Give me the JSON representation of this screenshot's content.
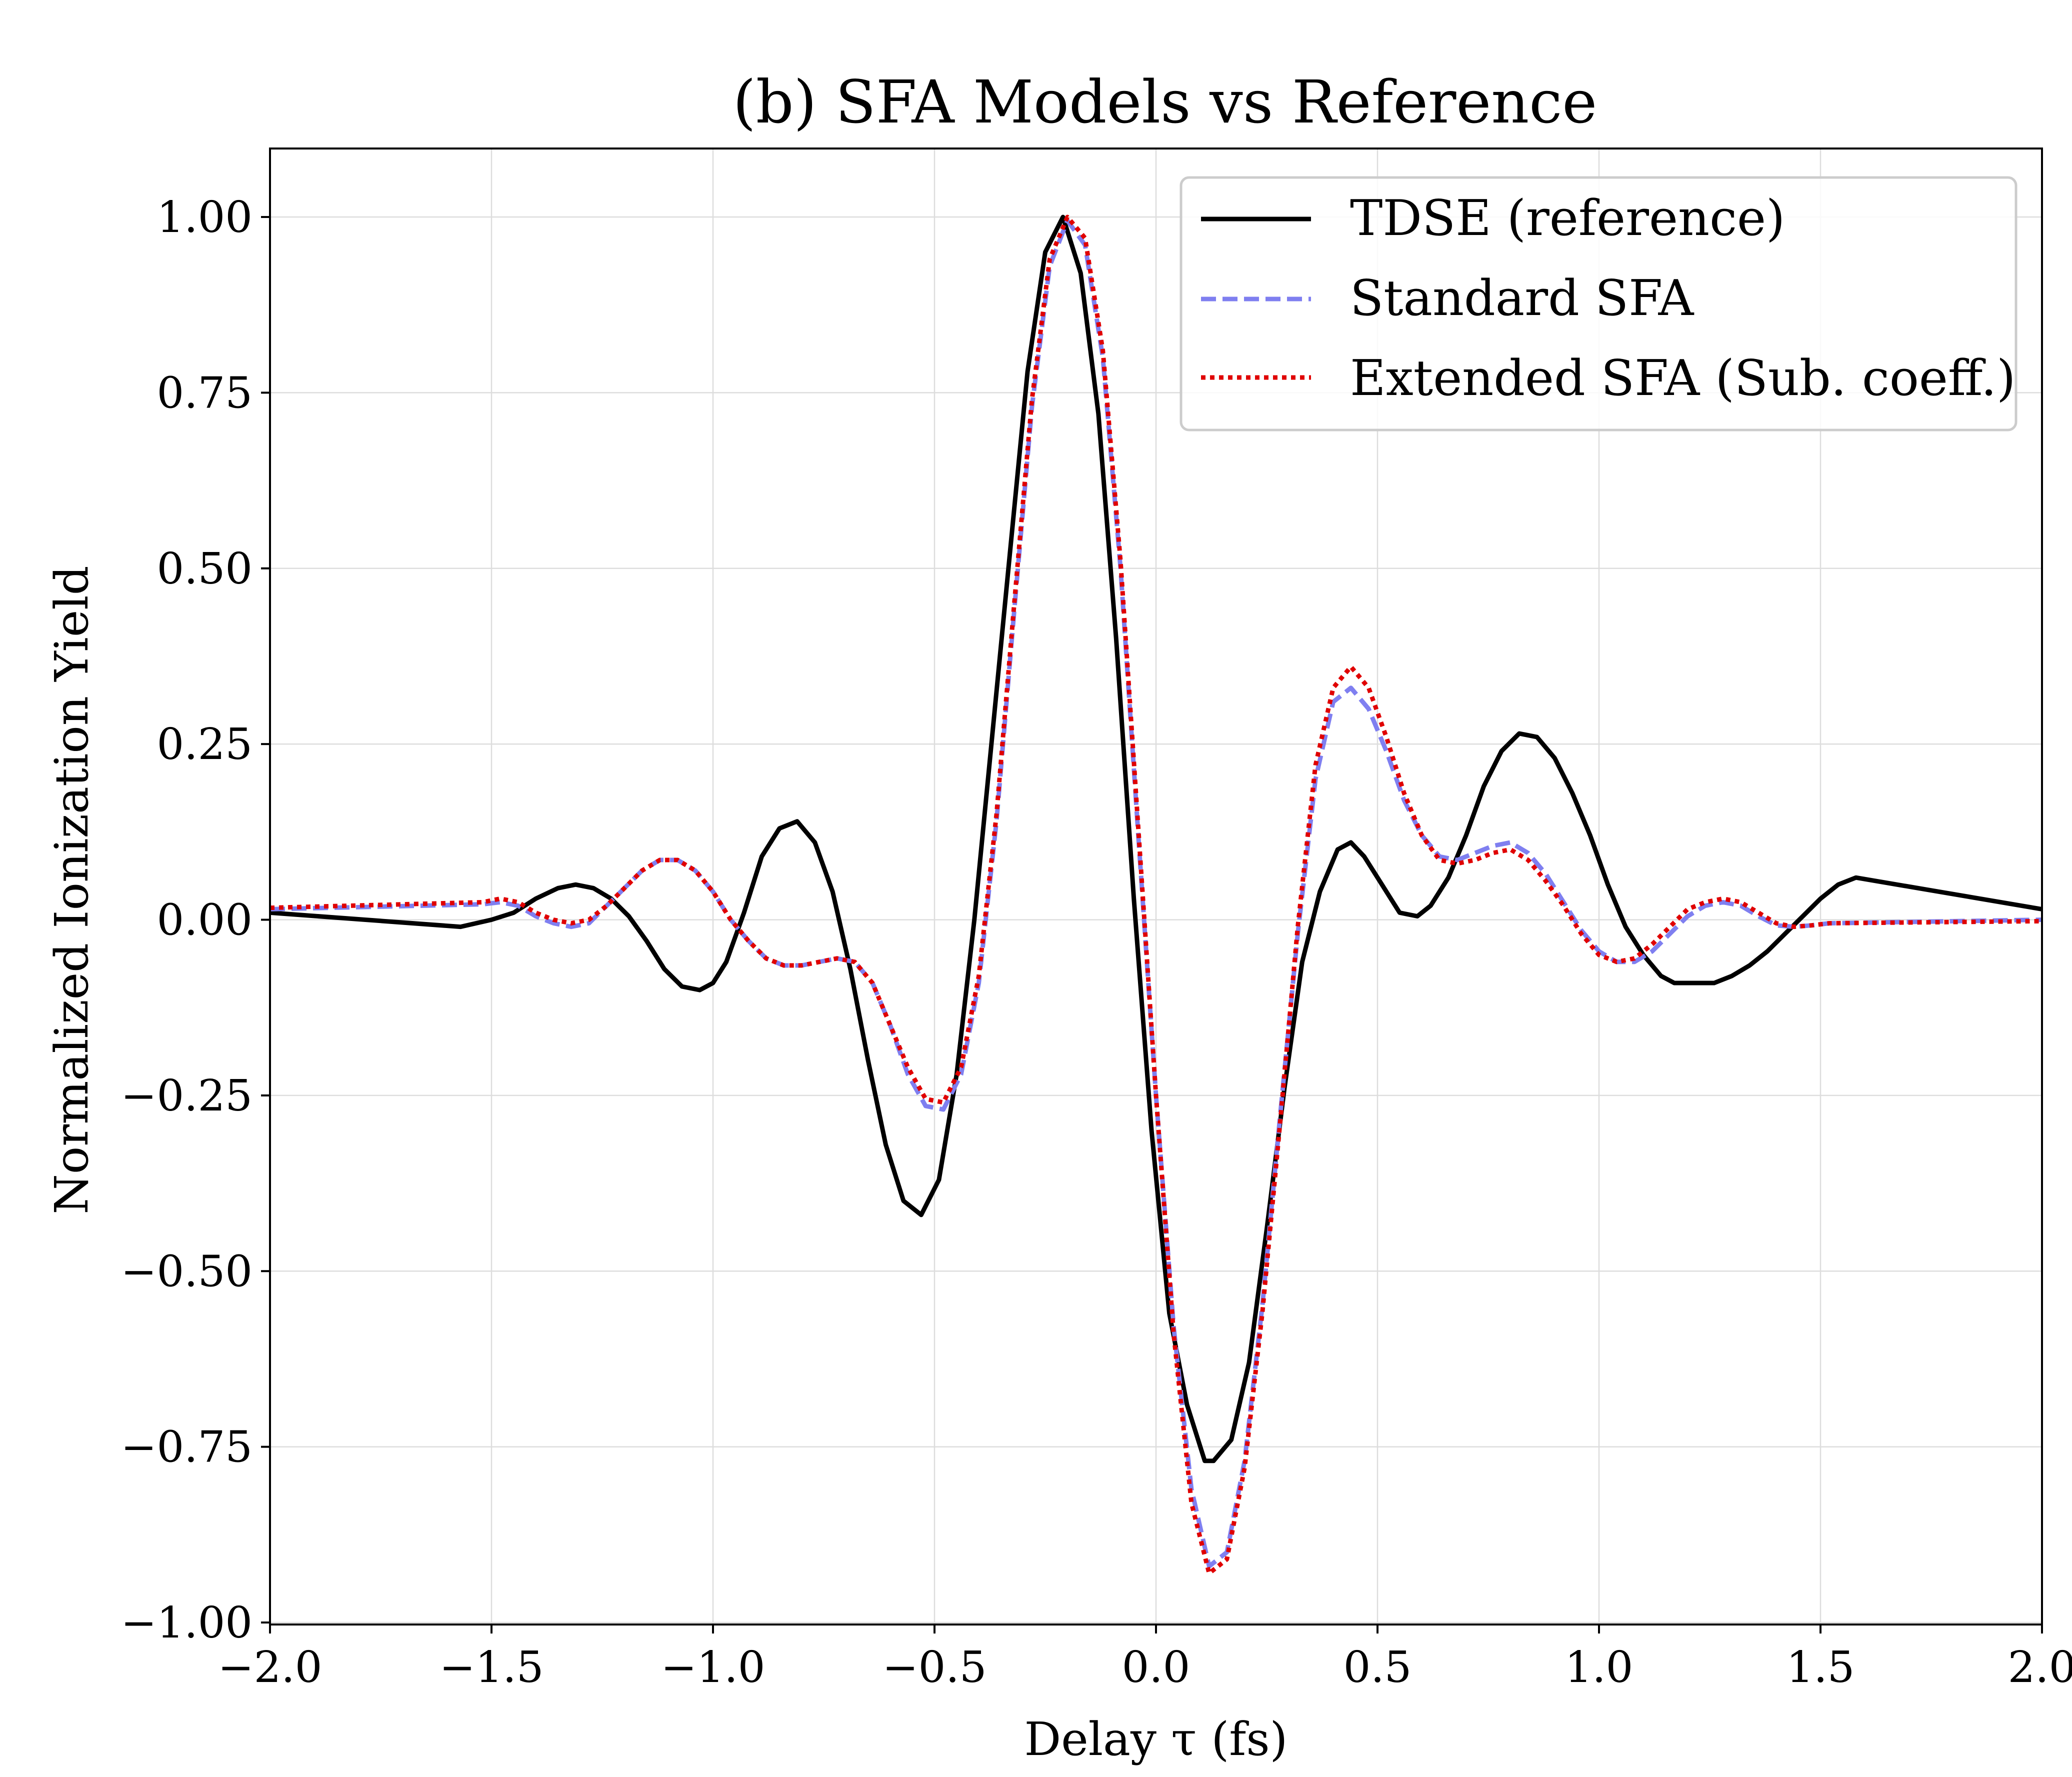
{
  "chart_data": {
    "type": "line",
    "title": "(b) SFA Models vs Reference",
    "xlabel": "Delay τ (fs)",
    "ylabel": "Normalized Ionization Yield",
    "xlim": [
      -2.0,
      2.0
    ],
    "ylim": [
      -1.0,
      1.1
    ],
    "grid": true,
    "legend_position": "top-right",
    "x_ticks": [
      -2.0,
      -1.5,
      -1.0,
      -0.5,
      0.0,
      0.5,
      1.0,
      1.5,
      2.0
    ],
    "x_tick_labels": [
      "−2.0",
      "−1.5",
      "−1.0",
      "−0.5",
      "0.0",
      "0.5",
      "1.0",
      "1.5",
      "2.0"
    ],
    "y_ticks": [
      1.0,
      0.75,
      0.5,
      0.25,
      0.0,
      -0.25,
      -0.5,
      -0.75,
      -1.0
    ],
    "y_tick_labels": [
      "1.00",
      "0.75",
      "0.50",
      "0.25",
      "0.00",
      "−0.25",
      "−0.50",
      "−0.75",
      "−1.00"
    ],
    "series": [
      {
        "name": "TDSE (reference)",
        "color": "#000000",
        "style": "solid",
        "x": [
          -2.0,
          -1.57,
          -1.5,
          -1.45,
          -1.4,
          -1.35,
          -1.31,
          -1.27,
          -1.23,
          -1.19,
          -1.15,
          -1.11,
          -1.07,
          -1.03,
          -1.0,
          -0.97,
          -0.93,
          -0.89,
          -0.85,
          -0.81,
          -0.77,
          -0.73,
          -0.69,
          -0.65,
          -0.61,
          -0.57,
          -0.53,
          -0.49,
          -0.45,
          -0.41,
          -0.37,
          -0.33,
          -0.29,
          -0.25,
          -0.21,
          -0.17,
          -0.13,
          -0.09,
          -0.05,
          -0.01,
          0.03,
          0.07,
          0.11,
          0.13,
          0.17,
          0.21,
          0.25,
          0.29,
          0.33,
          0.37,
          0.41,
          0.44,
          0.47,
          0.51,
          0.55,
          0.59,
          0.62,
          0.66,
          0.7,
          0.74,
          0.78,
          0.82,
          0.86,
          0.9,
          0.94,
          0.98,
          1.02,
          1.06,
          1.1,
          1.14,
          1.17,
          1.22,
          1.26,
          1.3,
          1.34,
          1.38,
          1.42,
          1.46,
          1.5,
          1.54,
          1.58,
          2.0
        ],
        "y": [
          0.01,
          -0.01,
          0.0,
          0.01,
          0.03,
          0.045,
          0.05,
          0.045,
          0.03,
          0.005,
          -0.03,
          -0.07,
          -0.095,
          -0.1,
          -0.09,
          -0.06,
          0.01,
          0.09,
          0.13,
          0.14,
          0.11,
          0.04,
          -0.07,
          -0.2,
          -0.32,
          -0.4,
          -0.42,
          -0.37,
          -0.22,
          0.0,
          0.26,
          0.52,
          0.78,
          0.95,
          1.0,
          0.92,
          0.72,
          0.4,
          0.03,
          -0.3,
          -0.56,
          -0.69,
          -0.77,
          -0.77,
          -0.74,
          -0.63,
          -0.44,
          -0.24,
          -0.06,
          0.04,
          0.1,
          0.11,
          0.09,
          0.05,
          0.01,
          0.005,
          0.02,
          0.06,
          0.12,
          0.19,
          0.24,
          0.265,
          0.26,
          0.23,
          0.18,
          0.12,
          0.05,
          -0.01,
          -0.05,
          -0.08,
          -0.09,
          -0.09,
          -0.09,
          -0.08,
          -0.065,
          -0.045,
          -0.02,
          0.005,
          0.03,
          0.05,
          0.06,
          0.015
        ]
      },
      {
        "name": "Standard SFA",
        "color": "#7f7ff0",
        "style": "dashed",
        "x": [
          -2.0,
          -1.52,
          -1.48,
          -1.44,
          -1.4,
          -1.36,
          -1.32,
          -1.28,
          -1.24,
          -1.2,
          -1.16,
          -1.12,
          -1.08,
          -1.04,
          -1.0,
          -0.96,
          -0.92,
          -0.88,
          -0.84,
          -0.8,
          -0.76,
          -0.72,
          -0.68,
          -0.64,
          -0.6,
          -0.56,
          -0.52,
          -0.48,
          -0.44,
          -0.4,
          -0.36,
          -0.32,
          -0.28,
          -0.24,
          -0.2,
          -0.16,
          -0.12,
          -0.08,
          -0.04,
          0.0,
          0.04,
          0.08,
          0.12,
          0.16,
          0.2,
          0.24,
          0.28,
          0.32,
          0.36,
          0.4,
          0.44,
          0.48,
          0.52,
          0.56,
          0.6,
          0.64,
          0.68,
          0.72,
          0.76,
          0.8,
          0.84,
          0.88,
          0.92,
          0.96,
          1.0,
          1.04,
          1.08,
          1.12,
          1.16,
          1.2,
          1.24,
          1.28,
          1.32,
          1.36,
          1.4,
          1.44,
          1.48,
          1.52,
          2.0
        ],
        "y": [
          0.015,
          0.022,
          0.025,
          0.02,
          0.005,
          -0.005,
          -0.01,
          -0.005,
          0.02,
          0.045,
          0.07,
          0.085,
          0.085,
          0.07,
          0.04,
          0.0,
          -0.03,
          -0.055,
          -0.065,
          -0.065,
          -0.06,
          -0.055,
          -0.06,
          -0.09,
          -0.15,
          -0.22,
          -0.265,
          -0.27,
          -0.22,
          -0.09,
          0.14,
          0.44,
          0.73,
          0.93,
          0.995,
          0.96,
          0.8,
          0.5,
          0.12,
          -0.25,
          -0.58,
          -0.81,
          -0.92,
          -0.9,
          -0.77,
          -0.55,
          -0.28,
          -0.02,
          0.2,
          0.31,
          0.33,
          0.3,
          0.24,
          0.17,
          0.12,
          0.09,
          0.085,
          0.095,
          0.105,
          0.11,
          0.095,
          0.065,
          0.025,
          -0.015,
          -0.045,
          -0.06,
          -0.06,
          -0.045,
          -0.02,
          0.005,
          0.02,
          0.025,
          0.02,
          0.005,
          -0.008,
          -0.01,
          -0.008,
          -0.005,
          0.0
        ]
      },
      {
        "name": "Extended SFA (Sub. coeff.)",
        "color": "#e00000",
        "style": "dotted",
        "x": [
          -2.0,
          -1.52,
          -1.48,
          -1.44,
          -1.4,
          -1.36,
          -1.32,
          -1.28,
          -1.24,
          -1.2,
          -1.16,
          -1.12,
          -1.08,
          -1.04,
          -1.0,
          -0.96,
          -0.92,
          -0.88,
          -0.84,
          -0.8,
          -0.76,
          -0.72,
          -0.68,
          -0.64,
          -0.6,
          -0.56,
          -0.52,
          -0.48,
          -0.44,
          -0.4,
          -0.36,
          -0.32,
          -0.28,
          -0.24,
          -0.2,
          -0.16,
          -0.12,
          -0.08,
          -0.04,
          0.0,
          0.04,
          0.08,
          0.12,
          0.16,
          0.2,
          0.24,
          0.28,
          0.32,
          0.36,
          0.4,
          0.44,
          0.48,
          0.52,
          0.56,
          0.6,
          0.64,
          0.68,
          0.72,
          0.76,
          0.8,
          0.84,
          0.88,
          0.92,
          0.96,
          1.0,
          1.04,
          1.08,
          1.12,
          1.16,
          1.2,
          1.24,
          1.28,
          1.32,
          1.36,
          1.4,
          1.44,
          1.48,
          1.52,
          2.0
        ],
        "y": [
          0.017,
          0.025,
          0.03,
          0.025,
          0.01,
          0.0,
          -0.005,
          0.0,
          0.02,
          0.045,
          0.07,
          0.085,
          0.085,
          0.07,
          0.04,
          0.0,
          -0.03,
          -0.055,
          -0.065,
          -0.065,
          -0.06,
          -0.055,
          -0.06,
          -0.09,
          -0.15,
          -0.21,
          -0.255,
          -0.26,
          -0.21,
          -0.08,
          0.15,
          0.45,
          0.74,
          0.94,
          1.0,
          0.97,
          0.81,
          0.51,
          0.13,
          -0.25,
          -0.59,
          -0.83,
          -0.93,
          -0.91,
          -0.78,
          -0.56,
          -0.29,
          -0.01,
          0.22,
          0.33,
          0.36,
          0.33,
          0.26,
          0.18,
          0.12,
          0.085,
          0.08,
          0.085,
          0.095,
          0.1,
          0.085,
          0.055,
          0.02,
          -0.02,
          -0.05,
          -0.06,
          -0.055,
          -0.035,
          -0.01,
          0.015,
          0.025,
          0.03,
          0.025,
          0.01,
          -0.005,
          -0.01,
          -0.008,
          -0.005,
          -0.002
        ]
      }
    ]
  }
}
